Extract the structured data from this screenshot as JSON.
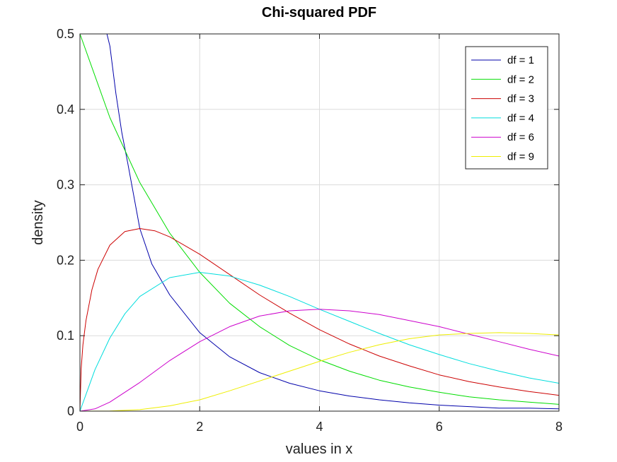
{
  "chart_data": {
    "type": "line",
    "title": "Chi-squared PDF",
    "xlabel": "values in x",
    "ylabel": "density",
    "xlim": [
      0,
      8
    ],
    "ylim": [
      0,
      0.5
    ],
    "x_ticks": [
      "0",
      "2",
      "4",
      "6",
      "8"
    ],
    "y_ticks": [
      "0",
      "0.1",
      "0.2",
      "0.3",
      "0.4",
      "0.5"
    ],
    "grid": true,
    "legend_position": "top-right",
    "series": [
      {
        "name": "df = 1",
        "color": "#0000aa",
        "x": [
          0.45,
          0.5,
          0.6,
          0.7,
          0.8,
          1,
          1.2,
          1.5,
          2,
          2.5,
          3,
          3.5,
          4,
          4.5,
          5,
          5.5,
          6,
          6.5,
          7,
          7.5,
          8
        ],
        "y": [
          0.5,
          0.484,
          0.421,
          0.369,
          0.328,
          0.242,
          0.195,
          0.154,
          0.104,
          0.072,
          0.051,
          0.037,
          0.027,
          0.02,
          0.015,
          0.011,
          0.008,
          0.006,
          0.004,
          0.004,
          0.003
        ]
      },
      {
        "name": "df = 2",
        "color": "#00dd00",
        "x": [
          0,
          0.5,
          1,
          1.5,
          2,
          2.5,
          3,
          3.5,
          4,
          4.5,
          5,
          5.5,
          6,
          6.5,
          7,
          7.5,
          8
        ],
        "y": [
          0.5,
          0.389,
          0.303,
          0.236,
          0.184,
          0.143,
          0.112,
          0.087,
          0.068,
          0.053,
          0.041,
          0.032,
          0.025,
          0.019,
          0.015,
          0.012,
          0.009
        ]
      },
      {
        "name": "df = 3",
        "color": "#cc0000",
        "x": [
          0,
          0.02,
          0.05,
          0.1,
          0.2,
          0.3,
          0.5,
          0.75,
          1,
          1.25,
          1.5,
          2,
          2.5,
          3,
          3.5,
          4,
          4.5,
          5,
          5.5,
          6,
          6.5,
          7,
          7.5,
          8
        ],
        "y": [
          0,
          0.056,
          0.088,
          0.12,
          0.161,
          0.188,
          0.22,
          0.238,
          0.242,
          0.239,
          0.231,
          0.208,
          0.181,
          0.154,
          0.13,
          0.108,
          0.089,
          0.073,
          0.06,
          0.048,
          0.039,
          0.032,
          0.026,
          0.021
        ]
      },
      {
        "name": "df = 4",
        "color": "#00dddd",
        "x": [
          0,
          0.25,
          0.5,
          0.75,
          1,
          1.5,
          2,
          2.5,
          3,
          3.5,
          4,
          4.5,
          5,
          5.5,
          6,
          6.5,
          7,
          7.5,
          8
        ],
        "y": [
          0,
          0.055,
          0.097,
          0.129,
          0.152,
          0.177,
          0.184,
          0.179,
          0.167,
          0.152,
          0.135,
          0.119,
          0.103,
          0.088,
          0.075,
          0.063,
          0.053,
          0.044,
          0.037
        ]
      },
      {
        "name": "df = 6",
        "color": "#cc00cc",
        "x": [
          0,
          0.25,
          0.5,
          1,
          1.5,
          2,
          2.5,
          3,
          3.5,
          4,
          4.5,
          5,
          5.5,
          6,
          6.5,
          7,
          7.5,
          8
        ],
        "y": [
          0,
          0.003,
          0.012,
          0.038,
          0.067,
          0.092,
          0.112,
          0.126,
          0.133,
          0.135,
          0.133,
          0.128,
          0.12,
          0.112,
          0.102,
          0.092,
          0.082,
          0.073
        ]
      },
      {
        "name": "df = 9",
        "color": "#eeee00",
        "x": [
          0,
          0.5,
          1,
          1.5,
          2,
          2.5,
          3,
          3.5,
          4,
          4.5,
          5,
          5.5,
          6,
          6.5,
          7,
          7.5,
          8
        ],
        "y": [
          0,
          0.0003,
          0.002,
          0.007,
          0.015,
          0.027,
          0.04,
          0.053,
          0.066,
          0.078,
          0.088,
          0.096,
          0.101,
          0.103,
          0.104,
          0.103,
          0.101
        ]
      }
    ]
  }
}
